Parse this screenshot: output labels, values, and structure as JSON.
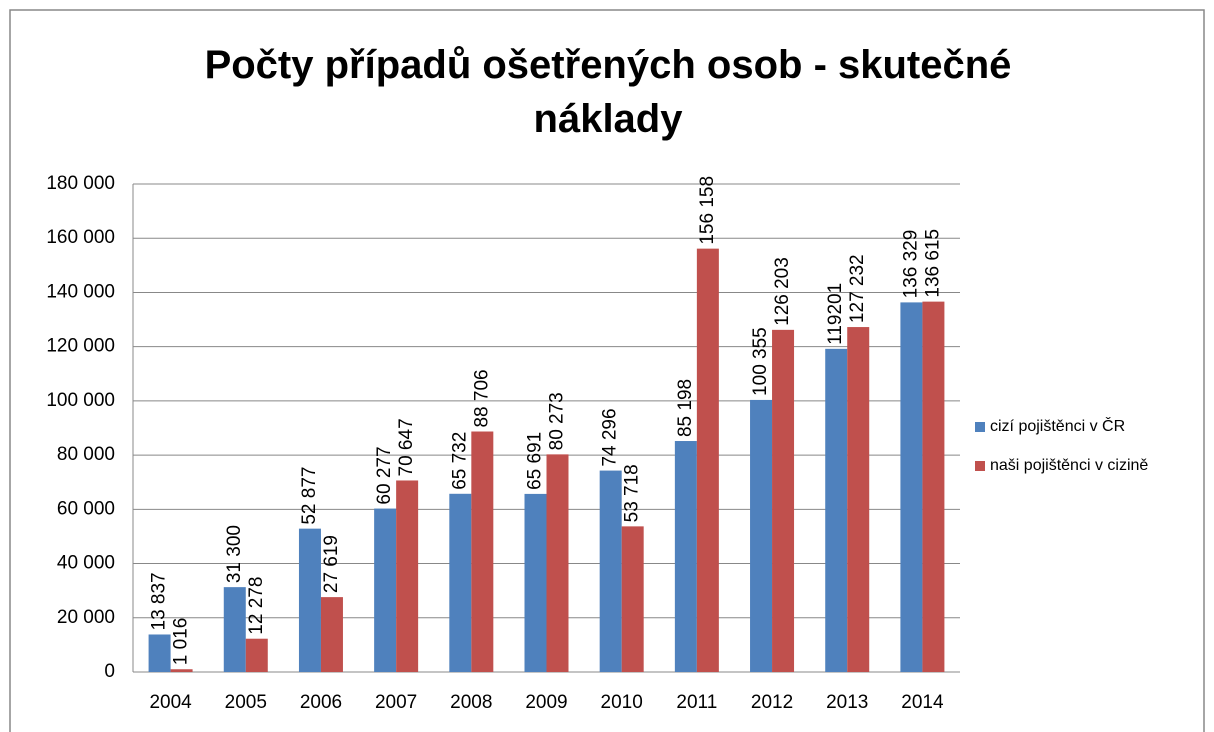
{
  "chart_data": {
    "type": "bar",
    "title": "Počty případů ošetřených osob - skutečné náklady",
    "categories": [
      "2004",
      "2005",
      "2006",
      "2007",
      "2008",
      "2009",
      "2010",
      "2011",
      "2012",
      "2013",
      "2014"
    ],
    "series": [
      {
        "name": "cizí pojištěnci v ČR",
        "color": "#4f81bd",
        "values": [
          13837,
          31300,
          52877,
          60277,
          65732,
          65691,
          74296,
          85198,
          100355,
          119201,
          136329
        ],
        "value_labels": [
          "13 837",
          "31 300",
          "52 877",
          "60 277",
          "65 732",
          "65 691",
          "74 296",
          "85 198",
          "100 355",
          "119201",
          "136 329"
        ]
      },
      {
        "name": "naši pojištěnci v cizině",
        "color": "#c0504d",
        "values": [
          1016,
          12278,
          27619,
          70647,
          88706,
          80273,
          53718,
          156158,
          126203,
          127232,
          136615
        ],
        "value_labels": [
          "1 016",
          "12 278",
          "27 619",
          "70 647",
          "88 706",
          "80 273",
          "53 718",
          "156 158",
          "126 203",
          "127 232",
          "136 615"
        ]
      }
    ],
    "ylim": [
      0,
      180000
    ],
    "yticks": [
      0,
      {
        "value": 20000,
        "label": "20 000"
      },
      {
        "value": 40000,
        "label": "40 000"
      },
      {
        "value": 60000,
        "label": "60 000"
      },
      {
        "value": 80000,
        "label": "80 000"
      },
      {
        "value": 100000,
        "label": "100 000"
      },
      {
        "value": 120000,
        "label": "120 000"
      },
      {
        "value": 140000,
        "label": "140 000"
      },
      {
        "value": 160000,
        "label": "160 000"
      },
      {
        "value": 180000,
        "label": "180 000"
      }
    ],
    "grid": true,
    "legend": "right"
  }
}
